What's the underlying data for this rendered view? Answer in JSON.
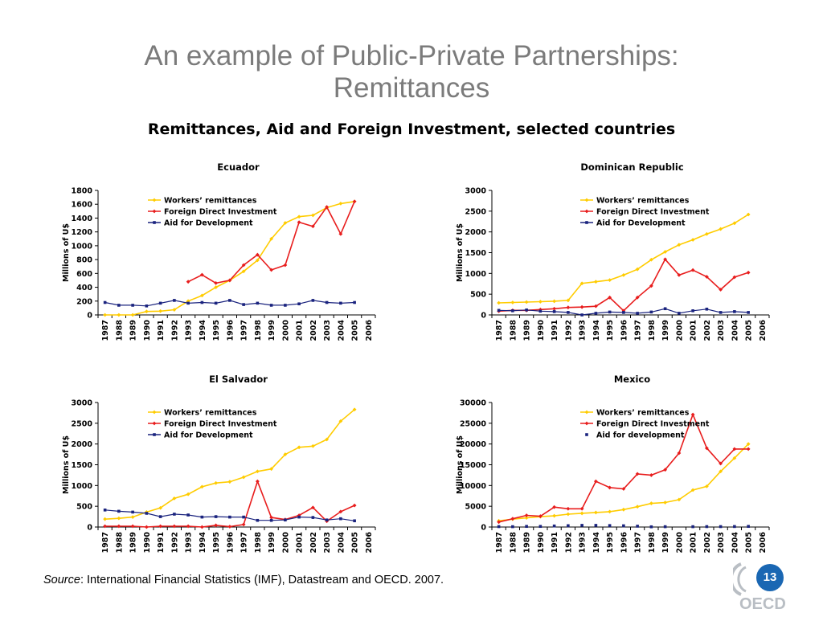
{
  "slide": {
    "title_line1": "An example of Public-Private Partnerships:",
    "title_line2": "Remittances",
    "subtitle": "Remittances, Aid and Foreign Investment, selected countries",
    "source_label": "Source",
    "source_text": ": International Financial Statistics (IMF), Datastream and OECD. 2007.",
    "page_number": "13",
    "logo_text": "OECD",
    "colors": {
      "remittances": "#ffcc00",
      "fdi": "#e81d1d",
      "aid": "#1a237e",
      "title": "#7b7b7b",
      "badge": "#1a67b3"
    }
  },
  "chart_data": [
    {
      "type": "line",
      "title": "Ecuador",
      "ylabel": "Millions of U$",
      "x": [
        "1987",
        "1988",
        "1989",
        "1990",
        "1991",
        "1992",
        "1993",
        "1994",
        "1995",
        "1996",
        "1997",
        "1998",
        "1999",
        "2000",
        "2001",
        "2002",
        "2003",
        "2004",
        "2005",
        "2006"
      ],
      "ylim": [
        0,
        1800
      ],
      "yticks": [
        "0",
        "200",
        "400",
        "600",
        "800",
        "1000",
        "1200",
        "1400",
        "1600",
        "1800"
      ],
      "legend_position": "top-left",
      "series": [
        {
          "name": "Workers’ remittances",
          "marker": "diamond",
          "values": [
            0,
            0,
            0,
            50,
            55,
            75,
            200,
            280,
            400,
            500,
            630,
            790,
            1100,
            1330,
            1420,
            1440,
            1550,
            1610,
            1640,
            null
          ]
        },
        {
          "name": "Foreign Direct Investment",
          "marker": "diamond",
          "values": [
            null,
            null,
            null,
            null,
            null,
            null,
            480,
            580,
            460,
            500,
            720,
            870,
            650,
            720,
            1340,
            1280,
            1560,
            1170,
            1640,
            null
          ]
        },
        {
          "name": "Aid for Development",
          "marker": "square",
          "values": [
            180,
            140,
            140,
            130,
            170,
            210,
            170,
            180,
            170,
            210,
            150,
            170,
            140,
            140,
            160,
            210,
            180,
            170,
            180,
            null
          ]
        }
      ]
    },
    {
      "type": "line",
      "title": "Dominican Republic",
      "ylabel": "Millions of U$",
      "x": [
        "1987",
        "1988",
        "1989",
        "1990",
        "1991",
        "1992",
        "1993",
        "1994",
        "1995",
        "1996",
        "1997",
        "1998",
        "1999",
        "2000",
        "2001",
        "2002",
        "2003",
        "2004",
        "2005",
        "2006"
      ],
      "ylim": [
        0,
        3000
      ],
      "yticks": [
        "0",
        "500",
        "1000",
        "1500",
        "2000",
        "2500",
        "3000"
      ],
      "legend_position": "top-center",
      "series": [
        {
          "name": "Workers’ remittances",
          "marker": "diamond",
          "values": [
            290,
            300,
            310,
            320,
            330,
            350,
            760,
            800,
            840,
            960,
            1100,
            1330,
            1520,
            1690,
            1810,
            1950,
            2070,
            2210,
            2420,
            null
          ]
        },
        {
          "name": "Foreign Direct Investment",
          "marker": "diamond",
          "values": [
            90,
            110,
            110,
            130,
            150,
            180,
            190,
            210,
            420,
            100,
            420,
            700,
            1340,
            960,
            1080,
            920,
            610,
            910,
            1020,
            null
          ]
        },
        {
          "name": "Aid for Development",
          "marker": "square",
          "values": [
            110,
            100,
            120,
            90,
            80,
            60,
            0,
            40,
            70,
            60,
            40,
            70,
            150,
            40,
            100,
            140,
            60,
            80,
            60,
            null
          ]
        }
      ]
    },
    {
      "type": "line",
      "title": "El Salvador",
      "ylabel": "Millions of U$",
      "x": [
        "1987",
        "1988",
        "1989",
        "1990",
        "1991",
        "1992",
        "1993",
        "1994",
        "1995",
        "1996",
        "1997",
        "1998",
        "1999",
        "2000",
        "2001",
        "2002",
        "2003",
        "2004",
        "2005",
        "2006"
      ],
      "ylim": [
        0,
        3000
      ],
      "yticks": [
        "0",
        "500",
        "1000",
        "1500",
        "2000",
        "2500",
        "3000"
      ],
      "legend_position": "top-left",
      "series": [
        {
          "name": "Workers’ remittances",
          "marker": "diamond",
          "values": [
            190,
            210,
            240,
            360,
            460,
            690,
            790,
            970,
            1060,
            1090,
            1200,
            1340,
            1400,
            1750,
            1920,
            1950,
            2110,
            2550,
            2830,
            null
          ]
        },
        {
          "name": "Foreign Direct Investment",
          "marker": "diamond",
          "values": [
            20,
            20,
            20,
            0,
            20,
            20,
            20,
            0,
            40,
            10,
            60,
            1100,
            230,
            180,
            280,
            470,
            140,
            370,
            520,
            null
          ]
        },
        {
          "name": "Aid for Development",
          "marker": "square",
          "values": [
            410,
            380,
            360,
            330,
            250,
            310,
            290,
            240,
            250,
            240,
            240,
            160,
            160,
            170,
            240,
            230,
            170,
            200,
            150,
            null
          ]
        }
      ]
    },
    {
      "type": "line",
      "title": "Mexico",
      "ylabel": "Millions of U$",
      "x": [
        "1987",
        "1988",
        "1989",
        "1990",
        "1991",
        "1992",
        "1993",
        "1994",
        "1995",
        "1996",
        "1997",
        "1998",
        "1999",
        "2000",
        "2001",
        "2002",
        "2003",
        "2004",
        "2005",
        "2006"
      ],
      "ylim": [
        0,
        30000
      ],
      "yticks": [
        "0",
        "5000",
        "10000",
        "15000",
        "20000",
        "25000",
        "30000"
      ],
      "legend_position": "top-center",
      "series": [
        {
          "name": "Workers’ remittances",
          "marker": "diamond",
          "values": [
            1500,
            1900,
            2200,
            2500,
            2700,
            3100,
            3300,
            3500,
            3700,
            4200,
            4900,
            5700,
            5900,
            6600,
            8900,
            9800,
            13400,
            16600,
            20000,
            null
          ]
        },
        {
          "name": "Foreign Direct Investment",
          "marker": "diamond",
          "values": [
            1200,
            2000,
            2800,
            2600,
            4800,
            4400,
            4400,
            11000,
            9500,
            9200,
            12800,
            12500,
            13800,
            17800,
            27100,
            19000,
            15300,
            18800,
            18800,
            null
          ]
        },
        {
          "name": "Aid for development",
          "marker": "square",
          "markers_only": true,
          "values": [
            100,
            80,
            150,
            150,
            250,
            320,
            400,
            400,
            350,
            300,
            200,
            50,
            80,
            null,
            80,
            100,
            100,
            120,
            150,
            null
          ]
        }
      ]
    }
  ]
}
